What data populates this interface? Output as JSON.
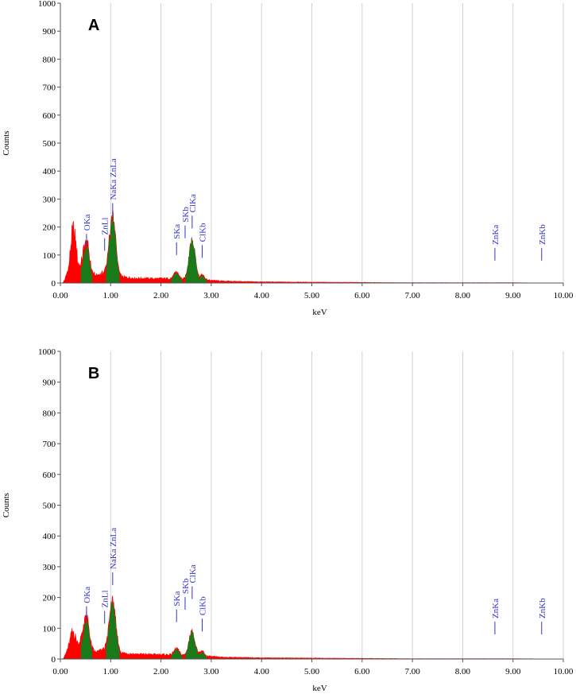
{
  "colors": {
    "background_spectrum": "#ff0000",
    "peak_fill": "#1a7a1a",
    "marker": "#3333cc",
    "grid": "#d0d0d0"
  },
  "chart_data": [
    {
      "type": "area",
      "panel_label": "A",
      "xlabel": "keV",
      "ylabel": "Counts",
      "xlim": [
        0,
        10
      ],
      "ylim": [
        0,
        1000
      ],
      "x_ticks": [
        "0.00",
        "1.00",
        "2.00",
        "3.00",
        "4.00",
        "5.00",
        "6.00",
        "7.00",
        "8.00",
        "9.00",
        "10.00"
      ],
      "y_ticks": [
        "0",
        "100",
        "200",
        "300",
        "400",
        "500",
        "600",
        "700",
        "800",
        "900",
        "1000"
      ],
      "grid": "vertical",
      "background": [
        {
          "x": 0.1,
          "y": 18
        },
        {
          "x": 0.17,
          "y": 60
        },
        {
          "x": 0.22,
          "y": 160
        },
        {
          "x": 0.26,
          "y": 188
        },
        {
          "x": 0.3,
          "y": 150
        },
        {
          "x": 0.35,
          "y": 72
        },
        {
          "x": 0.4,
          "y": 58
        },
        {
          "x": 0.45,
          "y": 74
        },
        {
          "x": 0.55,
          "y": 48
        },
        {
          "x": 0.7,
          "y": 26
        },
        {
          "x": 0.85,
          "y": 36
        },
        {
          "x": 0.95,
          "y": 48
        },
        {
          "x": 1.2,
          "y": 22
        },
        {
          "x": 1.5,
          "y": 17
        },
        {
          "x": 1.8,
          "y": 16
        },
        {
          "x": 2.2,
          "y": 16
        },
        {
          "x": 2.4,
          "y": 13
        },
        {
          "x": 2.85,
          "y": 12
        },
        {
          "x": 3.2,
          "y": 7
        },
        {
          "x": 4.0,
          "y": 4
        },
        {
          "x": 5.0,
          "y": 3
        },
        {
          "x": 6.0,
          "y": 2
        },
        {
          "x": 7.0,
          "y": 1
        },
        {
          "x": 8.0,
          "y": 1
        },
        {
          "x": 9.0,
          "y": 1
        },
        {
          "x": 10.0,
          "y": 0
        }
      ],
      "peaks": [
        {
          "center": 0.52,
          "height": 100,
          "width": 0.05
        },
        {
          "center": 1.04,
          "height": 205,
          "width": 0.06
        },
        {
          "center": 2.31,
          "height": 25,
          "width": 0.05
        },
        {
          "center": 2.62,
          "height": 140,
          "width": 0.06
        },
        {
          "center": 2.82,
          "height": 18,
          "width": 0.04
        }
      ],
      "markers": [
        {
          "label": "OKa",
          "x": 0.52,
          "y": 130
        },
        {
          "label": "ZnLl",
          "x": 0.88,
          "y": 115
        },
        {
          "label": "NaKa ZnLa",
          "x": 1.04,
          "y": 240
        },
        {
          "label": "SKa",
          "x": 2.31,
          "y": 100
        },
        {
          "label": "SKb",
          "x": 2.48,
          "y": 160
        },
        {
          "label": "ClKa",
          "x": 2.62,
          "y": 195
        },
        {
          "label": "ClKb",
          "x": 2.82,
          "y": 90
        },
        {
          "label": "ZnKa",
          "x": 8.64,
          "y": 80
        },
        {
          "label": "ZnKb",
          "x": 9.57,
          "y": 80
        }
      ]
    },
    {
      "type": "area",
      "panel_label": "B",
      "xlabel": "keV",
      "ylabel": "Counts",
      "xlim": [
        0,
        10
      ],
      "ylim": [
        0,
        1000
      ],
      "x_ticks": [
        "0.00",
        "1.00",
        "2.00",
        "3.00",
        "4.00",
        "5.00",
        "6.00",
        "7.00",
        "8.00",
        "9.00",
        "10.00"
      ],
      "y_ticks": [
        "0",
        "100",
        "200",
        "300",
        "400",
        "500",
        "600",
        "700",
        "800",
        "900",
        "1000"
      ],
      "grid": "vertical",
      "background": [
        {
          "x": 0.1,
          "y": 14
        },
        {
          "x": 0.17,
          "y": 45
        },
        {
          "x": 0.22,
          "y": 80
        },
        {
          "x": 0.26,
          "y": 90
        },
        {
          "x": 0.3,
          "y": 70
        },
        {
          "x": 0.35,
          "y": 48
        },
        {
          "x": 0.4,
          "y": 60
        },
        {
          "x": 0.45,
          "y": 68
        },
        {
          "x": 0.55,
          "y": 42
        },
        {
          "x": 0.7,
          "y": 22
        },
        {
          "x": 0.85,
          "y": 30
        },
        {
          "x": 0.95,
          "y": 40
        },
        {
          "x": 1.2,
          "y": 20
        },
        {
          "x": 1.5,
          "y": 16
        },
        {
          "x": 1.8,
          "y": 15
        },
        {
          "x": 2.2,
          "y": 14
        },
        {
          "x": 2.4,
          "y": 12
        },
        {
          "x": 2.85,
          "y": 10
        },
        {
          "x": 3.2,
          "y": 6
        },
        {
          "x": 4.0,
          "y": 4
        },
        {
          "x": 5.0,
          "y": 3
        },
        {
          "x": 6.0,
          "y": 2
        },
        {
          "x": 7.0,
          "y": 1
        },
        {
          "x": 8.0,
          "y": 1
        },
        {
          "x": 9.0,
          "y": 1
        },
        {
          "x": 10.0,
          "y": 0
        }
      ],
      "peaks": [
        {
          "center": 0.52,
          "height": 90,
          "width": 0.05
        },
        {
          "center": 1.04,
          "height": 160,
          "width": 0.06
        },
        {
          "center": 2.31,
          "height": 22,
          "width": 0.05
        },
        {
          "center": 2.62,
          "height": 80,
          "width": 0.06
        },
        {
          "center": 2.82,
          "height": 15,
          "width": 0.04
        }
      ],
      "markers": [
        {
          "label": "OKa",
          "x": 0.52,
          "y": 130
        },
        {
          "label": "ZnLl",
          "x": 0.88,
          "y": 115
        },
        {
          "label": "NaKa ZnLa",
          "x": 1.04,
          "y": 240
        },
        {
          "label": "SKa",
          "x": 2.31,
          "y": 120
        },
        {
          "label": "SKb",
          "x": 2.48,
          "y": 160
        },
        {
          "label": "ClKa",
          "x": 2.62,
          "y": 195
        },
        {
          "label": "ClKb",
          "x": 2.82,
          "y": 90
        },
        {
          "label": "ZnKa",
          "x": 8.64,
          "y": 80
        },
        {
          "label": "ZnKb",
          "x": 9.57,
          "y": 80
        }
      ]
    }
  ]
}
